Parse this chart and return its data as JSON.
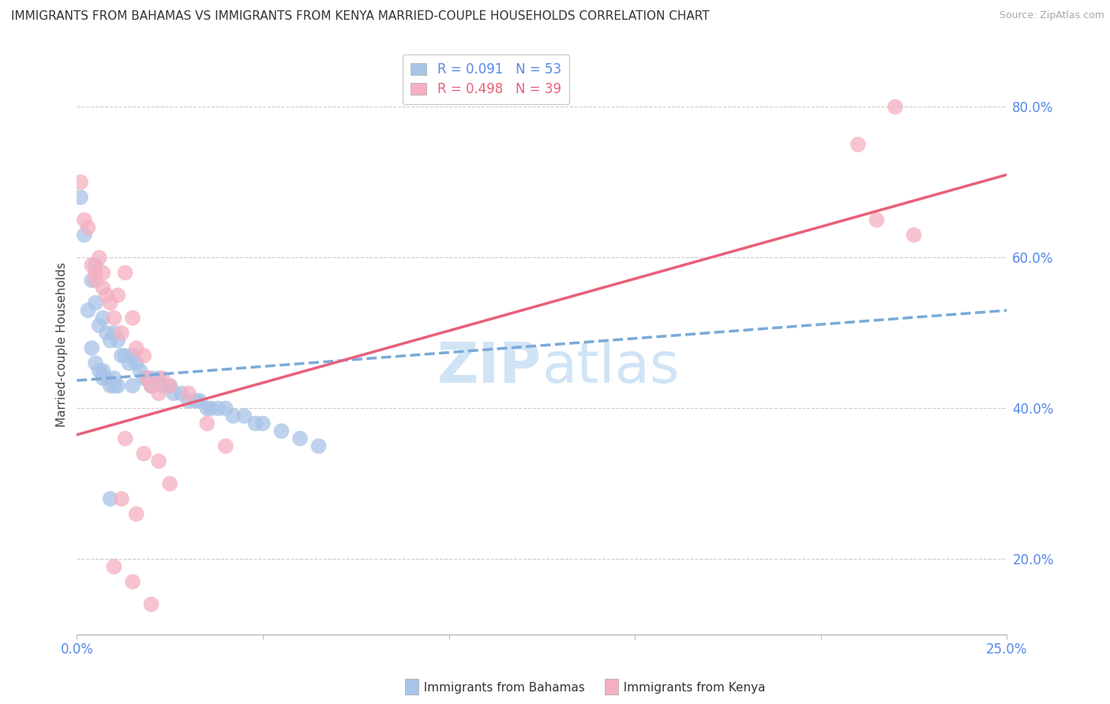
{
  "title": "IMMIGRANTS FROM BAHAMAS VS IMMIGRANTS FROM KENYA MARRIED-COUPLE HOUSEHOLDS CORRELATION CHART",
  "source": "Source: ZipAtlas.com",
  "ylabel": "Married-couple Households",
  "xlim": [
    0.0,
    0.25
  ],
  "ylim": [
    0.1,
    0.87
  ],
  "ytick_vals": [
    0.2,
    0.4,
    0.6,
    0.8
  ],
  "ytick_labels": [
    "20.0%",
    "40.0%",
    "60.0%",
    "80.0%"
  ],
  "xtick_vals": [
    0.0,
    0.05,
    0.1,
    0.15,
    0.2,
    0.25
  ],
  "xtick_labels": [
    "0.0%",
    "",
    "",
    "",
    "",
    "25.0%"
  ],
  "bahamas_R": 0.091,
  "bahamas_N": 53,
  "kenya_R": 0.498,
  "kenya_N": 39,
  "bahamas_color": "#a8c4e8",
  "kenya_color": "#f5afc0",
  "bahamas_line_color": "#7aaad8",
  "kenya_line_color": "#e8607a",
  "watermark_color": "#d0e4f5",
  "bah_line_x0": 0.0,
  "bah_line_y0": 0.437,
  "bah_line_x1": 0.25,
  "bah_line_y1": 0.53,
  "ken_line_x0": 0.0,
  "ken_line_y0": 0.365,
  "ken_line_x1": 0.25,
  "ken_line_y1": 0.71,
  "bahamas_x": [
    0.001,
    0.002,
    0.003,
    0.004,
    0.004,
    0.005,
    0.005,
    0.005,
    0.006,
    0.006,
    0.007,
    0.007,
    0.007,
    0.008,
    0.008,
    0.009,
    0.009,
    0.01,
    0.01,
    0.01,
    0.011,
    0.011,
    0.012,
    0.013,
    0.014,
    0.015,
    0.015,
    0.016,
    0.017,
    0.018,
    0.019,
    0.02,
    0.02,
    0.022,
    0.023,
    0.025,
    0.026,
    0.028,
    0.03,
    0.032,
    0.033,
    0.035,
    0.036,
    0.038,
    0.04,
    0.042,
    0.045,
    0.048,
    0.05,
    0.055,
    0.06,
    0.065,
    0.009
  ],
  "bahamas_y": [
    0.68,
    0.63,
    0.53,
    0.57,
    0.48,
    0.59,
    0.54,
    0.46,
    0.51,
    0.45,
    0.52,
    0.45,
    0.44,
    0.5,
    0.44,
    0.49,
    0.43,
    0.5,
    0.44,
    0.43,
    0.49,
    0.43,
    0.47,
    0.47,
    0.46,
    0.47,
    0.43,
    0.46,
    0.45,
    0.44,
    0.44,
    0.44,
    0.43,
    0.44,
    0.43,
    0.43,
    0.42,
    0.42,
    0.41,
    0.41,
    0.41,
    0.4,
    0.4,
    0.4,
    0.4,
    0.39,
    0.39,
    0.38,
    0.38,
    0.37,
    0.36,
    0.35,
    0.28
  ],
  "kenya_x": [
    0.001,
    0.002,
    0.003,
    0.004,
    0.005,
    0.005,
    0.006,
    0.007,
    0.007,
    0.008,
    0.009,
    0.01,
    0.011,
    0.012,
    0.013,
    0.015,
    0.016,
    0.018,
    0.019,
    0.02,
    0.022,
    0.023,
    0.025,
    0.03,
    0.035,
    0.04,
    0.013,
    0.018,
    0.022,
    0.025,
    0.012,
    0.016,
    0.21,
    0.22,
    0.215,
    0.225,
    0.01,
    0.015,
    0.02
  ],
  "kenya_y": [
    0.7,
    0.65,
    0.64,
    0.59,
    0.58,
    0.57,
    0.6,
    0.58,
    0.56,
    0.55,
    0.54,
    0.52,
    0.55,
    0.5,
    0.58,
    0.52,
    0.48,
    0.47,
    0.44,
    0.43,
    0.42,
    0.44,
    0.43,
    0.42,
    0.38,
    0.35,
    0.36,
    0.34,
    0.33,
    0.3,
    0.28,
    0.26,
    0.75,
    0.8,
    0.65,
    0.63,
    0.19,
    0.17,
    0.14
  ]
}
